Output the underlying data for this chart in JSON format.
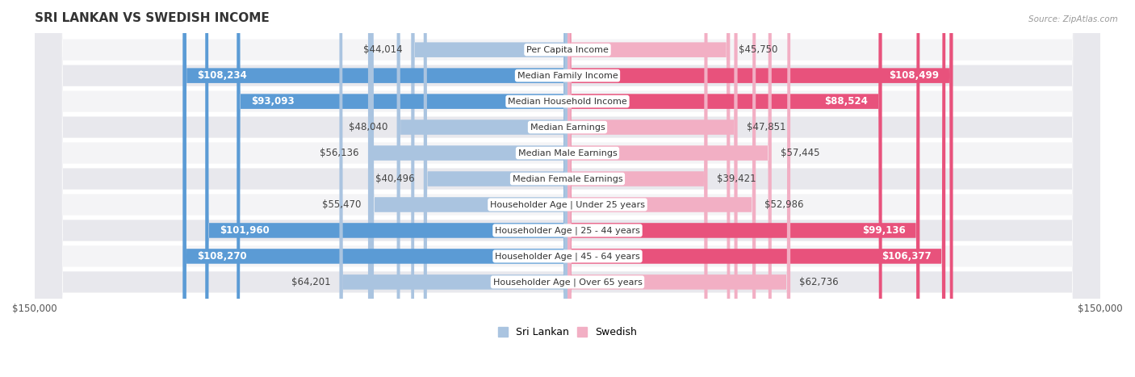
{
  "title": "SRI LANKAN VS SWEDISH INCOME",
  "source": "Source: ZipAtlas.com",
  "categories": [
    "Per Capita Income",
    "Median Family Income",
    "Median Household Income",
    "Median Earnings",
    "Median Male Earnings",
    "Median Female Earnings",
    "Householder Age | Under 25 years",
    "Householder Age | 25 - 44 years",
    "Householder Age | 45 - 64 years",
    "Householder Age | Over 65 years"
  ],
  "sri_lankan": [
    44014,
    108234,
    93093,
    48040,
    56136,
    40496,
    55470,
    101960,
    108270,
    64201
  ],
  "swedish": [
    45750,
    108499,
    88524,
    47851,
    57445,
    39421,
    52986,
    99136,
    106377,
    62736
  ],
  "sri_lankan_labels": [
    "$44,014",
    "$108,234",
    "$93,093",
    "$48,040",
    "$56,136",
    "$40,496",
    "$55,470",
    "$101,960",
    "$108,270",
    "$64,201"
  ],
  "swedish_labels": [
    "$45,750",
    "$108,499",
    "$88,524",
    "$47,851",
    "$57,445",
    "$39,421",
    "$52,986",
    "$99,136",
    "$106,377",
    "$62,736"
  ],
  "max_val": 150000,
  "sri_lankan_color_low": "#aac4e0",
  "sri_lankan_color_high": "#5b9bd5",
  "swedish_color_low": "#f2afc4",
  "swedish_color_high": "#e8527c",
  "threshold": 70000,
  "bar_height": 0.58,
  "row_bg_even": "#f4f4f6",
  "row_bg_odd": "#e8e8ed",
  "label_fontsize": 8.5,
  "cat_fontsize": 8.0,
  "legend_fontsize": 9,
  "title_fontsize": 11
}
